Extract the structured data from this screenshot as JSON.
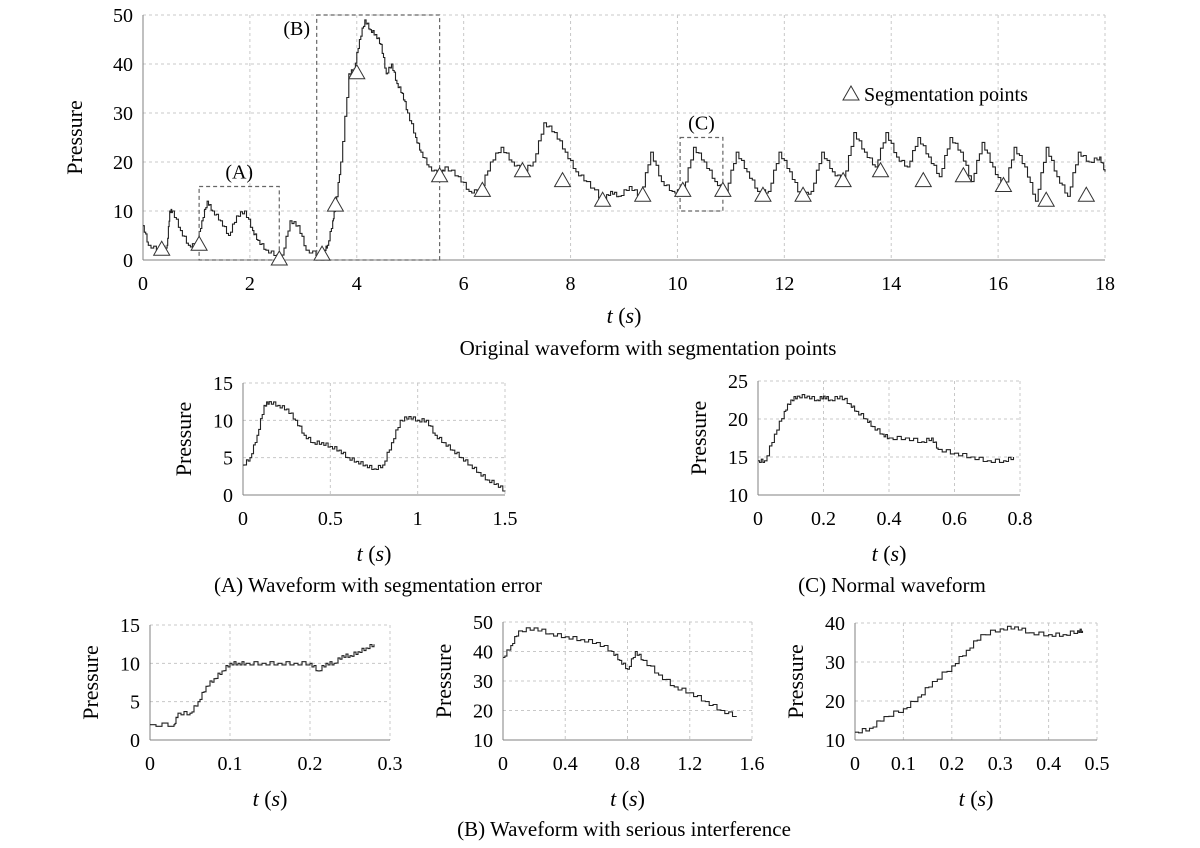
{
  "chart_data": [
    {
      "id": "main",
      "type": "line",
      "title": "Original waveform with segmentation points",
      "xlabel": "t (s)",
      "ylabel": "Pressure",
      "xlim": [
        0,
        18
      ],
      "ylim": [
        0,
        50
      ],
      "xticks": [
        0,
        2,
        4,
        6,
        8,
        10,
        12,
        14,
        16,
        18
      ],
      "yticks": [
        0,
        10,
        20,
        30,
        40,
        50
      ],
      "grid": true,
      "legend": {
        "label": "Segmentation points",
        "position": "top-right"
      },
      "series": [
        {
          "x": [
            0,
            0.1,
            0.3,
            0.45,
            0.5,
            0.55,
            0.7,
            0.85,
            1.0,
            1.1,
            1.2,
            1.3,
            1.45,
            1.6,
            1.75,
            1.9,
            2.05,
            2.15,
            2.3,
            2.5,
            2.6,
            2.75,
            2.9,
            3.05,
            3.3,
            3.4,
            3.45,
            3.55,
            3.6,
            3.7,
            3.85,
            3.95,
            4.05,
            4.15,
            4.25,
            4.35,
            4.45,
            4.55,
            4.65,
            4.75,
            4.85,
            4.95,
            5.1,
            5.2,
            5.35,
            5.55,
            5.65,
            5.9,
            6.1,
            6.3,
            6.5,
            6.7,
            6.9,
            7.1,
            7.3,
            7.5,
            7.7,
            7.9,
            8.1,
            8.3,
            8.6,
            8.75,
            8.9,
            9.1,
            9.3,
            9.5,
            9.7,
            9.9,
            10.1,
            10.3,
            10.5,
            10.7,
            10.9,
            11.1,
            11.3,
            11.5,
            11.7,
            11.9,
            12.1,
            12.3,
            12.5,
            12.7,
            12.9,
            13.1,
            13.3,
            13.5,
            13.7,
            13.9,
            14.1,
            14.3,
            14.5,
            14.7,
            14.9,
            15.1,
            15.3,
            15.5,
            15.7,
            15.9,
            16.1,
            16.3,
            16.5,
            16.7,
            16.9,
            17.1,
            17.3,
            17.5,
            17.7,
            17.9,
            18.0
          ],
          "y": [
            7,
            3,
            2,
            3,
            10,
            10,
            6,
            3,
            3,
            8,
            12,
            10,
            8,
            5,
            9,
            10,
            6,
            4,
            2,
            1,
            1,
            8,
            7,
            2,
            1,
            2,
            3,
            8,
            11,
            20,
            38,
            39,
            45,
            49,
            47,
            46,
            44,
            38,
            40,
            36,
            34,
            30,
            25,
            22,
            19,
            17,
            19,
            17,
            14,
            14,
            20,
            23,
            20,
            18,
            20,
            28,
            26,
            22,
            18,
            16,
            12,
            14,
            13,
            15,
            13,
            22,
            16,
            14,
            14,
            23,
            20,
            16,
            14,
            22,
            18,
            14,
            14,
            22,
            18,
            13,
            14,
            22,
            18,
            16,
            26,
            22,
            19,
            26,
            21,
            19,
            25,
            21,
            17,
            25,
            22,
            16,
            24,
            19,
            14,
            23,
            19,
            12,
            23,
            17,
            13,
            22,
            20,
            21,
            18
          ]
        }
      ],
      "segmentation_points": {
        "x": [
          0.35,
          1.05,
          2.55,
          3.35,
          3.6,
          4.0,
          5.55,
          6.35,
          7.1,
          7.85,
          8.6,
          9.35,
          10.1,
          10.85,
          11.6,
          12.35,
          13.1,
          13.8,
          14.6,
          15.35,
          16.1,
          16.9,
          17.65
        ],
        "y": [
          2,
          3,
          0,
          1,
          11,
          38,
          17,
          14,
          18,
          16,
          12,
          13,
          14,
          14,
          13,
          13,
          16,
          18,
          16,
          17,
          15,
          12,
          13
        ]
      },
      "regions": [
        {
          "label": "(A)",
          "x": [
            1.05,
            2.55
          ],
          "y": [
            0,
            15
          ]
        },
        {
          "label": "(B)",
          "x": [
            3.25,
            5.55
          ],
          "y": [
            0,
            50
          ]
        },
        {
          "label": "(C)",
          "x": [
            10.05,
            10.85
          ],
          "y": [
            10,
            25
          ]
        }
      ]
    },
    {
      "id": "A",
      "type": "line",
      "caption": "(A) Waveform with segmentation error",
      "xlabel": "t (s)",
      "ylabel": "Pressure",
      "xlim": [
        0,
        1.5
      ],
      "ylim": [
        0,
        15
      ],
      "xticks": [
        "0",
        "0.5",
        "1",
        "1.5"
      ],
      "yticks": [
        0,
        5,
        10,
        15
      ],
      "grid": true,
      "series": [
        {
          "x": [
            0,
            0.04,
            0.08,
            0.12,
            0.15,
            0.2,
            0.25,
            0.3,
            0.35,
            0.4,
            0.45,
            0.5,
            0.55,
            0.6,
            0.65,
            0.7,
            0.75,
            0.8,
            0.85,
            0.9,
            0.95,
            1.0,
            1.05,
            1.1,
            1.15,
            1.2,
            1.25,
            1.3,
            1.35,
            1.4,
            1.45,
            1.5
          ],
          "y": [
            4,
            5,
            8,
            12,
            12.5,
            12,
            11.5,
            10,
            8,
            7,
            7,
            6.5,
            6,
            5,
            4.5,
            4,
            3.5,
            4,
            7,
            10,
            10.5,
            10,
            10,
            8,
            7,
            6,
            5,
            4,
            3,
            2,
            1.5,
            0.5
          ]
        }
      ]
    },
    {
      "id": "C",
      "type": "line",
      "caption": "(C) Normal waveform",
      "xlabel": "t (s)",
      "ylabel": "Pressure",
      "xlim": [
        0,
        0.8
      ],
      "ylim": [
        10,
        25
      ],
      "xticks": [
        "0",
        "0.2",
        "0.4",
        "0.6",
        "0.8"
      ],
      "yticks": [
        10,
        15,
        20,
        25
      ],
      "grid": true,
      "series": [
        {
          "x": [
            0,
            0.02,
            0.05,
            0.08,
            0.1,
            0.12,
            0.15,
            0.18,
            0.2,
            0.22,
            0.25,
            0.28,
            0.3,
            0.33,
            0.35,
            0.38,
            0.4,
            0.45,
            0.5,
            0.53,
            0.55,
            0.6,
            0.65,
            0.7,
            0.75,
            0.78
          ],
          "y": [
            14.5,
            14.5,
            18,
            21,
            22.5,
            23,
            23,
            22.5,
            23,
            22.5,
            23,
            22,
            21,
            20,
            19,
            18,
            17.5,
            17.5,
            17,
            17.5,
            16,
            15.5,
            15,
            14.5,
            14.5,
            15
          ]
        }
      ]
    },
    {
      "id": "B1",
      "type": "line",
      "caption": "(B) Waveform with serious interference",
      "xlabel": "t (s)",
      "ylabel": "Pressure",
      "xlim": [
        0,
        0.3
      ],
      "ylim": [
        0,
        15
      ],
      "xticks": [
        "0",
        "0.1",
        "0.2",
        "0.3"
      ],
      "yticks": [
        0,
        5,
        10,
        15
      ],
      "grid": true,
      "series": [
        {
          "x": [
            0,
            0.03,
            0.035,
            0.05,
            0.06,
            0.07,
            0.08,
            0.09,
            0.1,
            0.11,
            0.12,
            0.14,
            0.16,
            0.18,
            0.2,
            0.21,
            0.22,
            0.23,
            0.24,
            0.25,
            0.26,
            0.27,
            0.28
          ],
          "y": [
            2,
            2,
            3.5,
            3.5,
            5,
            7,
            8,
            9,
            10,
            10,
            10,
            10,
            10,
            10,
            10,
            9,
            10,
            10,
            11,
            11,
            11.5,
            12,
            12.5
          ]
        }
      ]
    },
    {
      "id": "B2",
      "type": "line",
      "xlabel": "t (s)",
      "ylabel": "Pressure",
      "xlim": [
        0,
        1.6
      ],
      "ylim": [
        10,
        50
      ],
      "xticks": [
        "0",
        "0.4",
        "0.8",
        "1.2",
        "1.6"
      ],
      "yticks": [
        10,
        20,
        30,
        40,
        50
      ],
      "grid": true,
      "series": [
        {
          "x": [
            0,
            0.05,
            0.1,
            0.2,
            0.3,
            0.4,
            0.5,
            0.6,
            0.7,
            0.75,
            0.8,
            0.85,
            0.9,
            1.0,
            1.1,
            1.2,
            1.3,
            1.4,
            1.5
          ],
          "y": [
            38,
            42,
            47,
            48,
            46,
            45,
            44,
            43,
            40,
            37,
            34,
            40,
            37,
            32,
            28,
            26,
            23,
            20,
            18
          ]
        }
      ]
    },
    {
      "id": "B3",
      "type": "line",
      "xlabel": "t (s)",
      "ylabel": "Pressure",
      "xlim": [
        0,
        0.5
      ],
      "ylim": [
        10,
        40
      ],
      "xticks": [
        "0",
        "0.1",
        "0.2",
        "0.3",
        "0.4",
        "0.5"
      ],
      "yticks": [
        10,
        20,
        30,
        40
      ],
      "grid": true,
      "series": [
        {
          "x": [
            0,
            0.03,
            0.06,
            0.1,
            0.13,
            0.16,
            0.2,
            0.23,
            0.26,
            0.3,
            0.33,
            0.36,
            0.4,
            0.43,
            0.46,
            0.47
          ],
          "y": [
            12,
            13,
            16,
            18,
            21,
            25,
            29,
            33,
            37,
            38.5,
            39,
            37.5,
            37,
            37,
            38,
            38
          ]
        }
      ]
    }
  ]
}
